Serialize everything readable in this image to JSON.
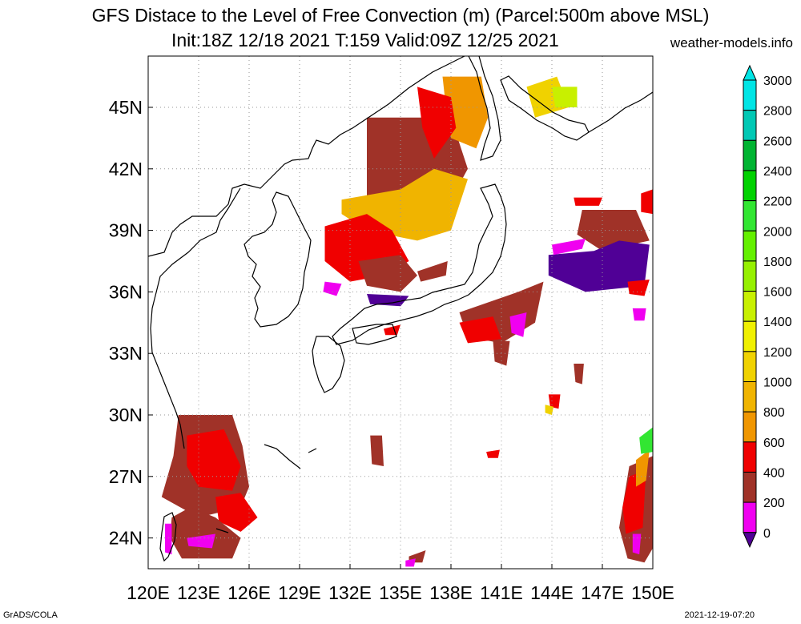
{
  "title": {
    "line1": "GFS Distace to the Level of Free Convection (m) (Parcel:500m above MSL)",
    "line2": "Init:18Z 12/18 2021 T:159 Valid:09Z 12/25 2021",
    "site": "weather-models.info"
  },
  "footer": {
    "left": "GrADS/COLA",
    "right": "2021-12-19-07:20"
  },
  "map": {
    "lon_labels": [
      "120E",
      "123E",
      "126E",
      "129E",
      "132E",
      "135E",
      "138E",
      "141E",
      "144E",
      "147E",
      "150E"
    ],
    "lat_labels": [
      "45N",
      "42N",
      "39N",
      "36N",
      "33N",
      "30N",
      "27N",
      "24N"
    ],
    "lon_values": [
      120,
      123,
      126,
      129,
      132,
      135,
      138,
      141,
      144,
      147,
      150
    ],
    "lat_values": [
      45,
      42,
      39,
      36,
      33,
      30,
      27,
      24
    ],
    "lon_range": [
      120,
      150
    ],
    "lat_range": [
      22.5,
      47.5
    ]
  },
  "colorbar": {
    "labels": [
      "3000",
      "2800",
      "2600",
      "2400",
      "2200",
      "2000",
      "1800",
      "1600",
      "1400",
      "1200",
      "1000",
      "800",
      "600",
      "400",
      "200",
      "0"
    ],
    "colors": [
      "#00e5e5",
      "#00c8b4",
      "#00b432",
      "#00d200",
      "#32e632",
      "#64f000",
      "#96f000",
      "#c8f000",
      "#f0f000",
      "#f0d200",
      "#f0b400",
      "#f09600",
      "#f00000",
      "#a03228",
      "#f000f0",
      "#500096"
    ]
  },
  "fields": [
    {
      "color": "#a03228",
      "poly": [
        [
          133,
          44.5
        ],
        [
          138,
          44.5
        ],
        [
          139,
          42
        ],
        [
          138,
          40.5
        ],
        [
          135,
          39
        ],
        [
          133,
          40.5
        ]
      ]
    },
    {
      "color": "#f09600",
      "poly": [
        [
          137.5,
          46.5
        ],
        [
          139.8,
          46.5
        ],
        [
          140.2,
          44.5
        ],
        [
          139.5,
          43
        ],
        [
          138,
          43.5
        ],
        [
          137.7,
          45
        ]
      ]
    },
    {
      "color": "#f00000",
      "poly": [
        [
          136,
          46
        ],
        [
          138,
          45.5
        ],
        [
          138.3,
          44
        ],
        [
          137,
          42.5
        ],
        [
          136.3,
          44
        ]
      ]
    },
    {
      "color": "#f0b400",
      "poly": [
        [
          131.5,
          40.5
        ],
        [
          135,
          41
        ],
        [
          137,
          42
        ],
        [
          139,
          41.5
        ],
        [
          138,
          39
        ],
        [
          136,
          38.5
        ],
        [
          133,
          39
        ],
        [
          131.5,
          39.8
        ]
      ]
    },
    {
      "color": "#f00000",
      "poly": [
        [
          130.5,
          39.2
        ],
        [
          133,
          39.8
        ],
        [
          134.5,
          39
        ],
        [
          135.5,
          37.5
        ],
        [
          134,
          36.8
        ],
        [
          132,
          36.5
        ],
        [
          130.5,
          37.5
        ]
      ]
    },
    {
      "color": "#a03228",
      "poly": [
        [
          132.5,
          37.5
        ],
        [
          135,
          37.8
        ],
        [
          136,
          36.8
        ],
        [
          135,
          36
        ],
        [
          133,
          36.3
        ]
      ]
    },
    {
      "color": "#f000f0",
      "poly": [
        [
          130.5,
          36.5
        ],
        [
          131.5,
          36.4
        ],
        [
          131.2,
          35.8
        ],
        [
          130.4,
          36
        ]
      ]
    },
    {
      "color": "#500096",
      "poly": [
        [
          133,
          35.9
        ],
        [
          135.5,
          35.8
        ],
        [
          135,
          35.3
        ],
        [
          133.2,
          35.4
        ]
      ]
    },
    {
      "color": "#a03228",
      "poly": [
        [
          136,
          37
        ],
        [
          137.8,
          37.5
        ],
        [
          137.7,
          36.8
        ],
        [
          136.2,
          36.5
        ]
      ]
    },
    {
      "color": "#f00000",
      "poly": [
        [
          134,
          34.2
        ],
        [
          135,
          34.4
        ],
        [
          134.8,
          33.9
        ],
        [
          134.1,
          33.9
        ]
      ]
    },
    {
      "color": "#f0d200",
      "poly": [
        [
          142.5,
          46
        ],
        [
          144.3,
          46.5
        ],
        [
          145,
          45
        ],
        [
          143,
          44.5
        ]
      ]
    },
    {
      "color": "#c8f000",
      "poly": [
        [
          144,
          46
        ],
        [
          145.5,
          46
        ],
        [
          145.5,
          45
        ],
        [
          144.2,
          45
        ]
      ]
    },
    {
      "color": "#a03228",
      "poly": [
        [
          145.8,
          40
        ],
        [
          149,
          40
        ],
        [
          149.8,
          38.5
        ],
        [
          147,
          38
        ],
        [
          145.5,
          38.8
        ]
      ]
    },
    {
      "color": "#500096",
      "poly": [
        [
          143.8,
          37.8
        ],
        [
          146.5,
          38
        ],
        [
          148,
          38.5
        ],
        [
          149.8,
          38.3
        ],
        [
          149.5,
          36.3
        ],
        [
          146,
          36
        ],
        [
          143.8,
          36.8
        ]
      ]
    },
    {
      "color": "#f000f0",
      "poly": [
        [
          144,
          38.3
        ],
        [
          146,
          38.6
        ],
        [
          145.8,
          38.1
        ],
        [
          144.1,
          37.8
        ]
      ]
    },
    {
      "color": "#a03228",
      "poly": [
        [
          138.5,
          35
        ],
        [
          142,
          36
        ],
        [
          143.5,
          36.5
        ],
        [
          143,
          34.5
        ],
        [
          141,
          33.5
        ],
        [
          139,
          33.8
        ]
      ]
    },
    {
      "color": "#f00000",
      "poly": [
        [
          138.5,
          34.5
        ],
        [
          140.5,
          34.8
        ],
        [
          141,
          33.7
        ],
        [
          139,
          33.5
        ]
      ]
    },
    {
      "color": "#f000f0",
      "poly": [
        [
          141.5,
          34.8
        ],
        [
          142.5,
          35
        ],
        [
          142.3,
          33.8
        ],
        [
          141.6,
          34
        ]
      ]
    },
    {
      "color": "#a03228",
      "poly": [
        [
          140.5,
          33.6
        ],
        [
          141.5,
          33.6
        ],
        [
          141.3,
          32.4
        ],
        [
          140.6,
          32.6
        ]
      ]
    },
    {
      "color": "#f00000",
      "poly": [
        [
          148.5,
          36.5
        ],
        [
          149.8,
          36.6
        ],
        [
          149.5,
          35.8
        ],
        [
          148.6,
          35.9
        ]
      ]
    },
    {
      "color": "#f000f0",
      "poly": [
        [
          148.8,
          35.2
        ],
        [
          149.6,
          35.2
        ],
        [
          149.5,
          34.6
        ],
        [
          148.9,
          34.6
        ]
      ]
    },
    {
      "color": "#f00000",
      "poly": [
        [
          143.8,
          31
        ],
        [
          144.5,
          31
        ],
        [
          144.4,
          30.3
        ],
        [
          143.9,
          30.4
        ]
      ]
    },
    {
      "color": "#f0d200",
      "poly": [
        [
          143.6,
          30.5
        ],
        [
          144.1,
          30.4
        ],
        [
          144,
          30
        ],
        [
          143.6,
          30.1
        ]
      ]
    },
    {
      "color": "#a03228",
      "poly": [
        [
          145.3,
          32.5
        ],
        [
          145.9,
          32.5
        ],
        [
          145.8,
          31.5
        ],
        [
          145.4,
          31.6
        ]
      ]
    },
    {
      "color": "#a03228",
      "poly": [
        [
          121.8,
          30
        ],
        [
          125,
          30
        ],
        [
          125.6,
          28.5
        ],
        [
          126,
          26.5
        ],
        [
          125.5,
          25.5
        ],
        [
          123,
          25
        ],
        [
          120.8,
          26
        ],
        [
          121.5,
          28
        ]
      ]
    },
    {
      "color": "#f00000",
      "poly": [
        [
          122.3,
          29
        ],
        [
          124.5,
          29.3
        ],
        [
          125.5,
          27.5
        ],
        [
          125,
          26.3
        ],
        [
          123,
          26.5
        ],
        [
          122.3,
          27.5
        ]
      ]
    },
    {
      "color": "#f00000",
      "poly": [
        [
          124,
          26
        ],
        [
          125.5,
          26.2
        ],
        [
          126.5,
          25
        ],
        [
          125.5,
          24.3
        ],
        [
          124.2,
          24.8
        ]
      ]
    },
    {
      "color": "#a03228",
      "poly": [
        [
          121.4,
          25
        ],
        [
          122.5,
          25.5
        ],
        [
          124,
          25
        ],
        [
          125.5,
          24
        ],
        [
          125,
          23
        ],
        [
          122,
          23
        ],
        [
          121.3,
          24
        ]
      ]
    },
    {
      "color": "#f000f0",
      "poly": [
        [
          122.3,
          24
        ],
        [
          124,
          24.2
        ],
        [
          123.8,
          23.5
        ],
        [
          122.4,
          23.6
        ]
      ]
    },
    {
      "color": "#f000f0",
      "poly": [
        [
          121,
          24.7
        ],
        [
          121.4,
          24.7
        ],
        [
          121.4,
          23.2
        ],
        [
          121,
          23.3
        ]
      ]
    },
    {
      "color": "#a03228",
      "poly": [
        [
          133.2,
          29
        ],
        [
          133.9,
          29
        ],
        [
          134,
          27.5
        ],
        [
          133.3,
          27.6
        ]
      ]
    },
    {
      "color": "#a03228",
      "poly": [
        [
          135.5,
          23.1
        ],
        [
          136.5,
          23.4
        ],
        [
          136.3,
          22.8
        ],
        [
          135.5,
          22.8
        ]
      ]
    },
    {
      "color": "#f000f0",
      "poly": [
        [
          135.3,
          22.9
        ],
        [
          135.9,
          23
        ],
        [
          135.8,
          22.6
        ],
        [
          135.3,
          22.6
        ]
      ]
    },
    {
      "color": "#f00000",
      "poly": [
        [
          140.1,
          28.2
        ],
        [
          140.9,
          28.3
        ],
        [
          140.8,
          27.9
        ],
        [
          140.2,
          27.9
        ]
      ]
    },
    {
      "color": "#a03228",
      "poly": [
        [
          148.6,
          27.5
        ],
        [
          150,
          28
        ],
        [
          150,
          23.5
        ],
        [
          149.5,
          22.8
        ],
        [
          148.5,
          23
        ],
        [
          148,
          24.5
        ]
      ]
    },
    {
      "color": "#f00000",
      "poly": [
        [
          148.6,
          27
        ],
        [
          149.6,
          27.3
        ],
        [
          149.4,
          24.5
        ],
        [
          148.4,
          24.2
        ],
        [
          148.2,
          25.5
        ]
      ]
    },
    {
      "color": "#f09600",
      "poly": [
        [
          149,
          27.8
        ],
        [
          149.8,
          28.3
        ],
        [
          149.6,
          26.8
        ],
        [
          149,
          26.5
        ]
      ]
    },
    {
      "color": "#32e632",
      "poly": [
        [
          149.2,
          28.9
        ],
        [
          150,
          29.4
        ],
        [
          150,
          28.2
        ],
        [
          149.3,
          28.1
        ]
      ]
    },
    {
      "color": "#f000f0",
      "poly": [
        [
          148.8,
          24.2
        ],
        [
          149.3,
          24.2
        ],
        [
          149.2,
          23.2
        ],
        [
          148.8,
          23.3
        ]
      ]
    },
    {
      "color": "#f00000",
      "poly": [
        [
          149.3,
          40.8
        ],
        [
          150,
          41
        ],
        [
          150,
          39.8
        ],
        [
          149.3,
          39.9
        ]
      ]
    },
    {
      "color": "#f00000",
      "poly": [
        [
          145.3,
          40.6
        ],
        [
          147,
          40.6
        ],
        [
          146.8,
          40.2
        ],
        [
          145.4,
          40.2
        ]
      ]
    }
  ]
}
